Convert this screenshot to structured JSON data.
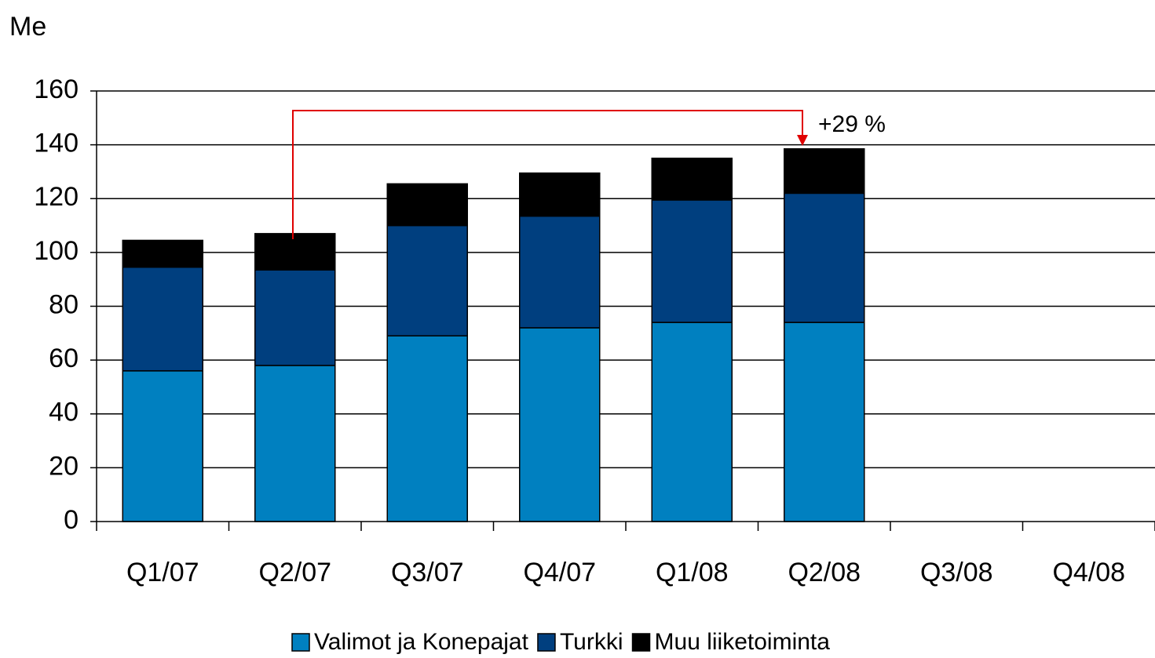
{
  "chart_data": {
    "type": "stacked_bar",
    "y_label": "Me",
    "categories": [
      "Q1/07",
      "Q2/07",
      "Q3/07",
      "Q4/07",
      "Q1/08",
      "Q2/08",
      "Q3/08",
      "Q4/08"
    ],
    "series": [
      {
        "name": "Valimot ja Konepajat",
        "color": "#0080c0",
        "values": [
          56,
          58,
          69,
          72,
          74,
          74,
          null,
          null
        ]
      },
      {
        "name": "Turkki",
        "color": "#003f7f",
        "values": [
          38.5,
          35.5,
          41,
          41.5,
          45.5,
          48,
          null,
          null
        ]
      },
      {
        "name": "Muu liiketoiminta",
        "color": "#000000",
        "values": [
          10,
          13.5,
          15.5,
          16,
          15.5,
          16.5,
          null,
          null
        ]
      }
    ],
    "ylim": [
      0,
      160
    ],
    "yticks": [
      0,
      20,
      40,
      60,
      80,
      100,
      120,
      140,
      160
    ],
    "grid": true,
    "legend": "bottom",
    "annotation": {
      "text": "+29 %",
      "color": "#e00000"
    }
  }
}
